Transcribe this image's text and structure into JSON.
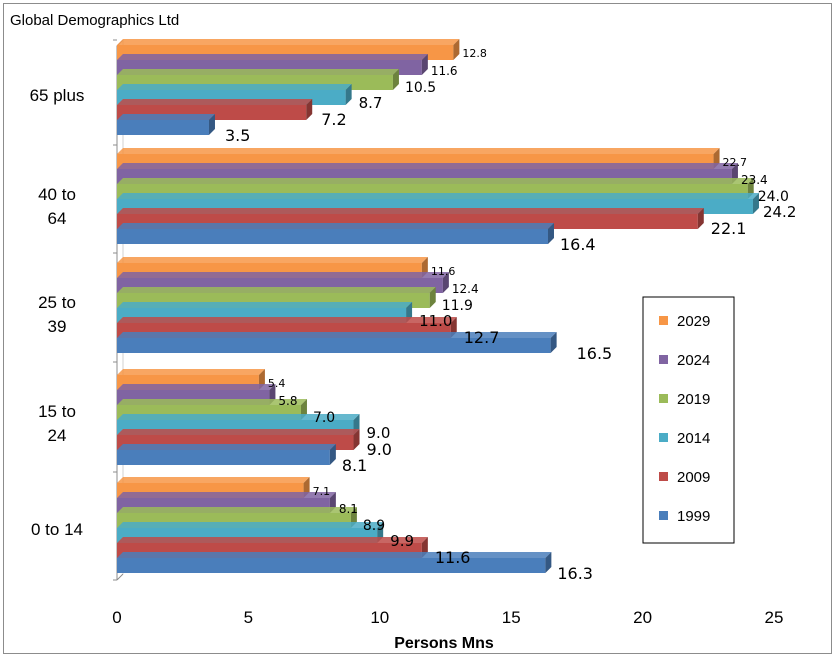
{
  "chart_data": {
    "type": "bar",
    "orientation": "horizontal",
    "title": "Global Demographics Ltd",
    "xlabel": "Persons Mns",
    "ylabel": "",
    "xlim": [
      0,
      25
    ],
    "xticks": [
      "0",
      "5",
      "10",
      "15",
      "20",
      "25"
    ],
    "grid": false,
    "legend_position": "right",
    "categories": [
      "0 to 14",
      "15 to 24",
      "25 to 39",
      "40 to 64",
      "65 plus"
    ],
    "category_lines": [
      [
        "0 to 14"
      ],
      [
        "15 to",
        "24"
      ],
      [
        "25 to",
        "39"
      ],
      [
        "40 to",
        "64"
      ],
      [
        "65 plus"
      ]
    ],
    "series": [
      {
        "name": "1999",
        "color": "#4a7ebb",
        "values": [
          16.3,
          8.1,
          16.5,
          16.4,
          3.5
        ],
        "labels": [
          "16.3",
          "8.1",
          "16.5",
          "16.4",
          "3.5"
        ]
      },
      {
        "name": "2009",
        "color": "#be4b48",
        "values": [
          11.6,
          9.0,
          12.7,
          22.1,
          7.2
        ],
        "labels": [
          "11.6",
          "9.0",
          "12.7",
          "22.1",
          "7.2"
        ]
      },
      {
        "name": "2014",
        "color": "#4bacc6",
        "values": [
          9.9,
          9.0,
          11.0,
          24.2,
          8.7
        ],
        "labels": [
          "9.9",
          "9.0",
          "11.0",
          "24.2",
          "8.7"
        ]
      },
      {
        "name": "2019",
        "color": "#9bbb59",
        "values": [
          8.9,
          7.0,
          11.9,
          24.0,
          10.5
        ],
        "labels": [
          "8.9",
          "7.0",
          "11.9",
          "24.0",
          "10.5"
        ]
      },
      {
        "name": "2024",
        "color": "#8064a2",
        "values": [
          8.1,
          5.8,
          12.4,
          23.4,
          11.6
        ],
        "labels": [
          "8.1",
          "5.8",
          "12.4",
          "23.4",
          "11.6"
        ]
      },
      {
        "name": "2029",
        "color": "#f79646",
        "values": [
          7.1,
          5.4,
          11.6,
          22.7,
          12.8
        ],
        "labels": [
          "7.1",
          "5.4",
          "11.6",
          "22.7",
          "12.8"
        ]
      }
    ]
  }
}
